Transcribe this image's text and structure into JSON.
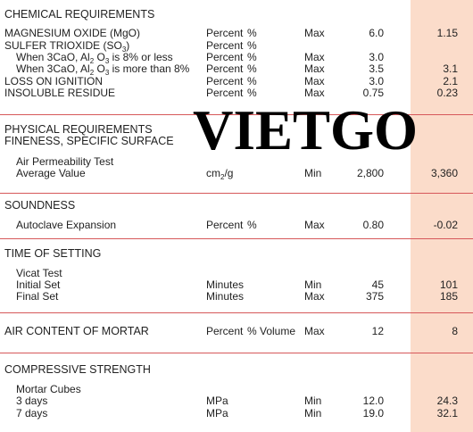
{
  "watermark": "VIETGO",
  "sections": [
    {
      "titles": [
        "CHEMICAL REQUIREMENTS"
      ],
      "rows": [
        {
          "label": [
            "MAGNESIUM OXIDE (MgO)"
          ],
          "unit": [
            "Percent"
          ],
          "unit2": "%",
          "limit": "Max",
          "spec": "6.0",
          "result": "1.15"
        },
        {
          "label": [
            "SULFER TRIOXIDE (SO",
            "3",
            ")"
          ],
          "unit": [
            "Percent"
          ],
          "unit2": "%"
        },
        {
          "label": [
            "When 3CaO, Al",
            "2",
            " O",
            "3",
            " is 8% or less"
          ],
          "unit": [
            "Percent"
          ],
          "unit2": "%",
          "limit": "Max",
          "spec": "3.0"
        },
        {
          "label": [
            "When 3CaO, Al",
            "2",
            " O",
            "3",
            " is more than 8%"
          ],
          "unit": [
            "Percent"
          ],
          "unit2": "%",
          "limit": "Max",
          "spec": "3.5",
          "result": "3.1"
        },
        {
          "label": [
            "LOSS ON IGNITION"
          ],
          "unit": [
            "Percent"
          ],
          "unit2": "%",
          "limit": "Max",
          "spec": "3.0",
          "result": "2.1"
        },
        {
          "label": [
            "INSOLUBLE RESIDUE"
          ],
          "unit": [
            "Percent"
          ],
          "unit2": "%",
          "limit": "Max",
          "spec": "0.75",
          "result": "0.23"
        }
      ]
    },
    {
      "titles": [
        "PHYSICAL REQUIREMENTS",
        "FINENESS, SPECIFIC SURFACE"
      ],
      "rows": [
        {
          "label": [
            "Air Permeability Test"
          ]
        },
        {
          "label": [
            "Average Value"
          ],
          "unit": [
            "cm",
            "2",
            "/g"
          ],
          "limit": "Min",
          "spec": "2,800",
          "result": "3,360"
        }
      ]
    },
    {
      "titles": [
        "SOUNDNESS"
      ],
      "rows": [
        {
          "label": [
            "Autoclave Expansion"
          ],
          "unit": [
            "Percent"
          ],
          "unit2": "%",
          "limit": "Max",
          "spec": "0.80",
          "result": "-0.02"
        }
      ]
    },
    {
      "titles": [
        "TIME OF SETTING"
      ],
      "rows": [
        {
          "label": [
            "Vicat Test"
          ]
        },
        {
          "label": [
            "Initial Set"
          ],
          "unit": [
            "Minutes"
          ],
          "limit": "Min",
          "spec": "45",
          "result": "101"
        },
        {
          "label": [
            "Final Set"
          ],
          "unit": [
            "Minutes"
          ],
          "limit": "Max",
          "spec": "375",
          "result": "185"
        }
      ]
    },
    {
      "titles": [
        "AIR CONTENT OF MORTAR"
      ],
      "rows": [
        {
          "unit": [
            "Percent"
          ],
          "unit2": "% Volume",
          "limit": "Max",
          "spec": "12",
          "result": "8"
        }
      ]
    },
    {
      "titles": [
        "COMPRESSIVE STRENGTH"
      ],
      "rows": [
        {
          "label": [
            "Mortar Cubes"
          ]
        },
        {
          "label": [
            "3 days"
          ],
          "unit": [
            "MPa"
          ],
          "limit": "Min",
          "spec": "12.0",
          "result": "24.3"
        },
        {
          "label": [
            "7 days"
          ],
          "unit": [
            "MPa"
          ],
          "limit": "Min",
          "spec": "19.0",
          "result": "32.1"
        }
      ]
    }
  ]
}
